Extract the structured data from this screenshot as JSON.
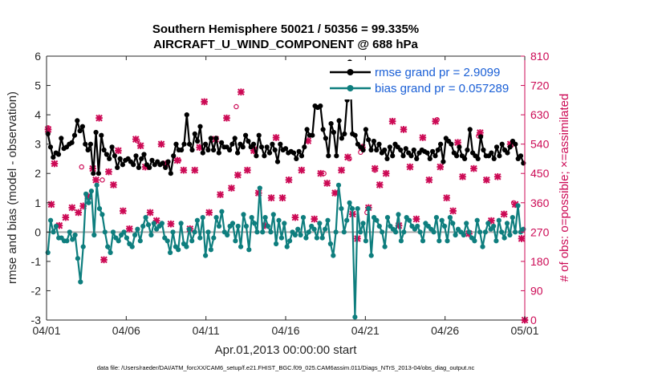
{
  "chart_data": {
    "type": "line",
    "title_line1": "Southern Hemisphere 50021 / 50356 = 99.335%",
    "title_line2": "AIRCRAFT_U_WIND_COMPONENT @ 688 hPa",
    "xlabel": "Apr.01,2013 00:00:00 start",
    "ylabel_left": "rmse and bias (model - observation)",
    "ylabel_right": "# of obs: o=possible; ×=assimilated",
    "footer": "data file: /Users/raeder/DAI/ATM_forcXX/CAM6_setup/f.e21.FHIST_BGC.f09_025.CAM6assim.011/Diags_NTrS_2013-04/obs_diag_output.nc",
    "xlim": [
      0,
      30
    ],
    "ylim_left": [
      -3,
      6
    ],
    "ylim_right": [
      0,
      810
    ],
    "x_ticks": [
      0,
      5,
      10,
      15,
      20,
      25,
      30
    ],
    "x_tick_labels": [
      "04/01",
      "04/06",
      "04/11",
      "04/16",
      "04/21",
      "04/26",
      "05/01"
    ],
    "y_ticks_left": [
      -3,
      -2,
      -1,
      0,
      1,
      2,
      3,
      4,
      5,
      6
    ],
    "y_ticks_right": [
      0,
      90,
      180,
      270,
      360,
      450,
      540,
      630,
      720,
      810
    ],
    "zero_line": 0,
    "colors": {
      "rmse": "#000000",
      "bias": "#0e7e7e",
      "obs": "#cc0a55",
      "legend_text": "#1a5fd6",
      "zero_line": "#aaaaaa"
    },
    "series": [
      {
        "name": "rmse grand pr = 2.9099",
        "values": [
          3.35,
          2.9,
          2.55,
          2.7,
          2.65,
          3.2,
          2.85,
          2.9,
          3.0,
          3.05,
          3.3,
          3.8,
          3.45,
          3.6,
          3.0,
          2.8,
          3.0,
          2.0,
          3.4,
          2.0,
          3.3,
          2.8,
          2.65,
          2.5,
          2.9,
          2.6,
          2.2,
          2.5,
          2.3,
          2.45,
          2.5,
          2.4,
          2.3,
          2.6,
          2.2,
          2.5,
          2.65,
          2.3,
          2.2,
          2.45,
          2.3,
          2.4,
          2.3,
          2.35,
          2.2,
          2.4,
          2.0,
          2.6,
          3.0,
          2.8,
          2.8,
          3.0,
          4.0,
          3.0,
          2.8,
          3.35,
          3.1,
          3.6,
          2.7,
          3.0,
          2.8,
          3.2,
          2.8,
          3.2,
          2.7,
          3.05,
          2.9,
          2.9,
          2.8,
          3.0,
          3.2,
          2.7,
          3.0,
          2.9,
          3.3,
          3.1,
          2.9,
          3.0,
          2.6,
          3.3,
          2.9,
          2.6,
          2.9,
          2.7,
          3.0,
          2.8,
          2.4,
          3.0,
          2.8,
          2.85,
          2.7,
          2.75,
          2.7,
          2.5,
          2.75,
          2.6,
          2.9,
          3.5,
          3.3,
          3.3,
          4.3,
          4.25,
          4.3,
          3.5,
          3.2,
          2.6,
          3.7,
          3.4,
          2.6,
          3.8,
          3.2,
          3.35,
          4.5,
          5.8,
          3.35,
          3.3,
          3.0,
          2.9,
          2.8,
          3.5,
          3.15,
          2.8,
          3.1,
          2.8,
          3.0,
          2.7,
          2.8,
          2.5,
          2.9,
          2.6,
          3.0,
          2.9,
          2.8,
          2.6,
          2.85,
          2.7,
          2.6,
          2.8,
          2.5,
          2.7,
          2.8,
          2.75,
          2.7,
          2.5,
          2.75,
          2.6,
          2.8,
          3.0,
          2.4,
          3.2,
          3.1,
          3.0,
          2.7,
          2.6,
          2.9,
          2.6,
          2.5,
          2.8,
          3.5,
          2.7,
          2.6,
          2.5,
          3.25,
          2.8,
          2.6,
          2.6,
          2.7,
          2.5,
          2.9,
          2.6,
          3.0,
          2.8,
          2.7,
          2.9,
          3.1,
          3.0,
          2.5,
          2.6,
          2.35
        ]
      },
      {
        "name": "bias grand pr = 0.057289",
        "values": [
          -0.7,
          0.4,
          0.0,
          0.2,
          -0.2,
          -0.2,
          -0.3,
          -0.3,
          0.0,
          -0.25,
          -0.1,
          -0.9,
          -1.7,
          -0.5,
          1.3,
          1.0,
          1.4,
          -0.1,
          1.6,
          0.8,
          0.6,
          0.0,
          -0.5,
          -0.7,
          0.0,
          -0.2,
          -0.3,
          -0.1,
          0.0,
          -0.2,
          -0.4,
          -0.5,
          -0.1,
          0.1,
          -0.3,
          0.2,
          0.5,
          0.25,
          -0.1,
          0.3,
          0.1,
          0.2,
          0.3,
          -0.2,
          -0.3,
          -0.7,
          0.0,
          -0.5,
          -0.6,
          0.3,
          -0.4,
          -0.5,
          0.1,
          -0.3,
          0.0,
          0.4,
          -0.2,
          0.5,
          -0.8,
          0.0,
          -0.6,
          -0.2,
          0.5,
          0.2,
          0.7,
          0.0,
          -0.1,
          0.2,
          0.3,
          -0.3,
          0.2,
          -0.5,
          0.6,
          0.2,
          -0.6,
          0.5,
          0.3,
          0.0,
          1.5,
          0.0,
          0.5,
          0.2,
          0.0,
          0.6,
          -0.4,
          0.4,
          -0.2,
          0.3,
          -0.5,
          -0.3,
          0.0,
          -0.1,
          0.1,
          -0.1,
          0.5,
          -0.2,
          0.0,
          0.2,
          0.1,
          -0.2,
          0.3,
          -0.2,
          0.1,
          0.4,
          -0.4,
          -0.8,
          0.0,
          1.6,
          0.8,
          0.0,
          0.4,
          1.0,
          0.8,
          -2.9,
          0.8,
          0.0,
          0.3,
          -0.3,
          0.8,
          -0.8,
          0.5,
          0.4,
          0.2,
          0.0,
          -0.5,
          0.5,
          0.2,
          0.1,
          0.0,
          0.6,
          -0.3,
          0.0,
          0.5,
          0.4,
          0.2,
          0.1,
          0.2,
          0.0,
          -0.3,
          0.3,
          0.2,
          0.1,
          0.0,
          0.5,
          -0.3,
          0.4,
          0.2,
          -0.3,
          0.5,
          0.3,
          -0.1,
          0.1,
          0.0,
          -0.1,
          0.3,
          0.0,
          -0.2,
          -0.3,
          0.4,
          0.0,
          -0.5,
          0.0,
          0.3,
          0.1,
          0.2,
          -0.3,
          0.4,
          0.0,
          -0.2,
          0.3,
          -0.1,
          0.5,
          0.0,
          0.9,
          0.0,
          0.1
        ]
      }
    ],
    "obs_assimilated": [
      [
        0.1,
        585
      ],
      [
        0.3,
        355
      ],
      [
        0.5,
        480
      ],
      [
        0.8,
        290
      ],
      [
        1.2,
        315
      ],
      [
        1.6,
        345
      ],
      [
        2.0,
        330
      ],
      [
        2.3,
        350
      ],
      [
        2.6,
        380
      ],
      [
        2.9,
        465
      ],
      [
        3.1,
        430
      ],
      [
        3.3,
        620
      ],
      [
        3.6,
        185
      ],
      [
        3.9,
        455
      ],
      [
        4.2,
        415
      ],
      [
        4.5,
        520
      ],
      [
        4.8,
        335
      ],
      [
        5.2,
        280
      ],
      [
        5.6,
        555
      ],
      [
        5.9,
        535
      ],
      [
        6.2,
        470
      ],
      [
        6.5,
        330
      ],
      [
        6.9,
        305
      ],
      [
        7.2,
        540
      ],
      [
        7.5,
        480
      ],
      [
        7.8,
        295
      ],
      [
        8.2,
        490
      ],
      [
        8.6,
        460
      ],
      [
        9.0,
        280
      ],
      [
        9.3,
        460
      ],
      [
        9.6,
        530
      ],
      [
        9.9,
        670
      ],
      [
        10.2,
        330
      ],
      [
        10.6,
        555
      ],
      [
        10.9,
        385
      ],
      [
        11.3,
        620
      ],
      [
        11.6,
        405
      ],
      [
        12.0,
        445
      ],
      [
        12.2,
        700
      ],
      [
        12.6,
        460
      ],
      [
        13.0,
        520
      ],
      [
        13.3,
        390
      ],
      [
        13.7,
        290
      ],
      [
        14.1,
        375
      ],
      [
        14.4,
        560
      ],
      [
        14.8,
        375
      ],
      [
        15.2,
        430
      ],
      [
        15.6,
        315
      ],
      [
        16.0,
        460
      ],
      [
        16.4,
        550
      ],
      [
        16.8,
        310
      ],
      [
        17.2,
        450
      ],
      [
        17.6,
        420
      ],
      [
        18.1,
        390
      ],
      [
        18.5,
        460
      ],
      [
        18.9,
        500
      ],
      [
        19.2,
        325
      ],
      [
        19.5,
        250
      ],
      [
        19.8,
        530
      ],
      [
        20.2,
        345
      ],
      [
        20.6,
        465
      ],
      [
        20.9,
        415
      ],
      [
        21.3,
        450
      ],
      [
        21.7,
        610
      ],
      [
        22.1,
        290
      ],
      [
        22.4,
        585
      ],
      [
        22.8,
        470
      ],
      [
        23.2,
        310
      ],
      [
        23.6,
        560
      ],
      [
        24.0,
        430
      ],
      [
        24.4,
        610
      ],
      [
        24.7,
        470
      ],
      [
        25.1,
        375
      ],
      [
        25.5,
        335
      ],
      [
        25.8,
        545
      ],
      [
        26.1,
        440
      ],
      [
        26.5,
        265
      ],
      [
        26.8,
        465
      ],
      [
        27.2,
        575
      ],
      [
        27.6,
        430
      ],
      [
        27.9,
        305
      ],
      [
        28.3,
        440
      ],
      [
        28.7,
        325
      ],
      [
        29.1,
        540
      ],
      [
        29.4,
        355
      ],
      [
        29.8,
        250
      ],
      [
        30.0,
        0
      ]
    ],
    "obs_possible": [
      [
        0.1,
        590
      ],
      [
        2.2,
        470
      ],
      [
        3.5,
        430
      ],
      [
        5.7,
        550
      ],
      [
        8.3,
        490
      ],
      [
        11.9,
        655
      ],
      [
        13.1,
        525
      ],
      [
        17.4,
        450
      ],
      [
        19.0,
        495
      ],
      [
        19.7,
        515
      ],
      [
        20.1,
        330
      ],
      [
        20.6,
        460
      ],
      [
        24.5,
        615
      ],
      [
        27.1,
        565
      ],
      [
        29.3,
        360
      ]
    ]
  }
}
